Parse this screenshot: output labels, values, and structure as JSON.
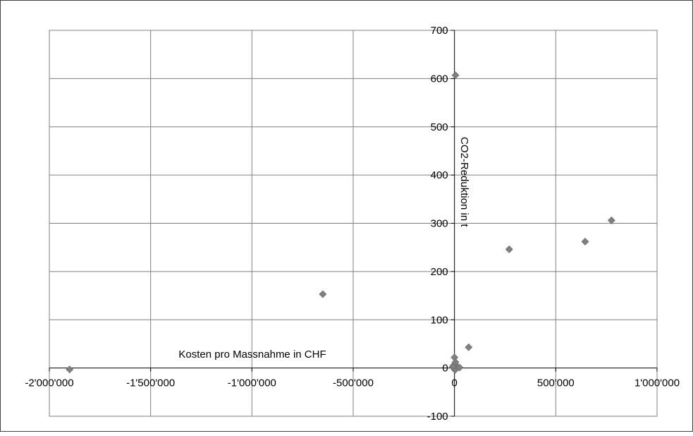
{
  "chart_data": {
    "type": "scatter",
    "title": "",
    "xlabel": "Kosten pro Massnahme in CHF",
    "ylabel": "CO2-Reduktion in t",
    "xlim": [
      -2000000,
      1000000
    ],
    "ylim": [
      -100,
      700
    ],
    "x_ticks": [
      -2000000,
      -1500000,
      -1000000,
      -500000,
      0,
      500000,
      1000000
    ],
    "x_tick_labels": [
      "-2'000'000",
      "-1'500'000",
      "-1'000'000",
      "-500'000",
      "0",
      "500'000",
      "1'000'000"
    ],
    "y_ticks": [
      -100,
      0,
      100,
      200,
      300,
      400,
      500,
      600,
      700
    ],
    "y_tick_labels": [
      "-100",
      "0",
      "100",
      "200",
      "300",
      "400",
      "500",
      "600",
      "700"
    ],
    "grid": true,
    "legend": "none",
    "marker_color": "#808080",
    "points": [
      {
        "x": -1900000,
        "y": -3
      },
      {
        "x": -650000,
        "y": 153
      },
      {
        "x": 5000,
        "y": 607
      },
      {
        "x": 70000,
        "y": 43
      },
      {
        "x": 270000,
        "y": 246
      },
      {
        "x": 645000,
        "y": 262
      },
      {
        "x": 775000,
        "y": 306
      },
      {
        "x": 0,
        "y": 22
      },
      {
        "x": -5000,
        "y": 5
      },
      {
        "x": 2000,
        "y": 8
      },
      {
        "x": 8000,
        "y": 3
      },
      {
        "x": -2000,
        "y": 1
      },
      {
        "x": 0,
        "y": -2
      },
      {
        "x": 3000,
        "y": -4
      },
      {
        "x": 25000,
        "y": 1
      },
      {
        "x": -8000,
        "y": 3
      },
      {
        "x": 5000,
        "y": 12
      }
    ]
  }
}
